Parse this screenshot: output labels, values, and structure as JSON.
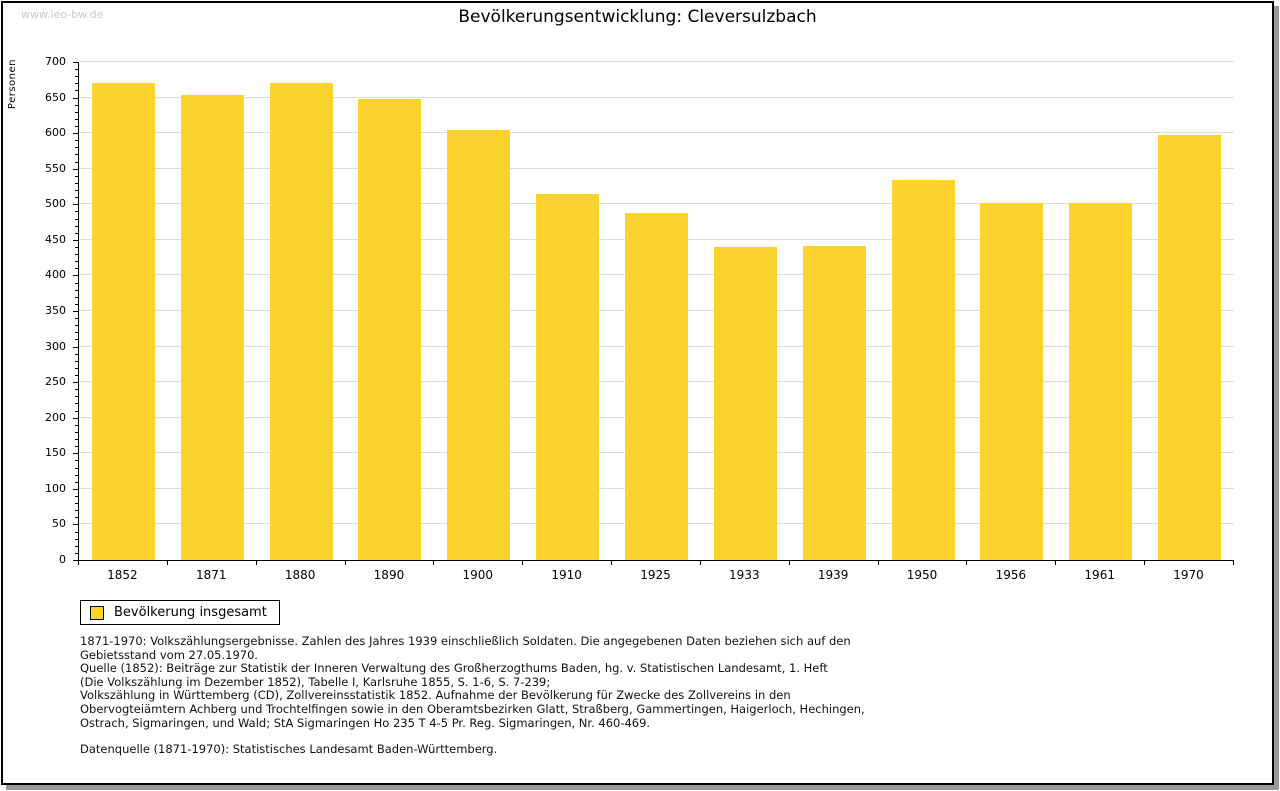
{
  "watermark": "www.leo-bw.de",
  "header": {
    "title": "Bevölkerungsentwicklung: Cleversulzbach"
  },
  "chart_data": {
    "type": "bar",
    "title": "Bevölkerungsentwicklung: Cleversulzbach",
    "xlabel": "",
    "ylabel": "Personen",
    "categories": [
      "1852",
      "1871",
      "1880",
      "1890",
      "1900",
      "1910",
      "1925",
      "1933",
      "1939",
      "1950",
      "1956",
      "1961",
      "1970"
    ],
    "values": [
      671,
      653,
      671,
      648,
      604,
      514,
      488,
      440,
      442,
      534,
      502,
      502,
      597
    ],
    "ylim": [
      0,
      700
    ],
    "ytick_step": 50,
    "y_minor_step": 10,
    "grid": true,
    "legend_position": "bottom-left",
    "series_name": "Bevölkerung insgesamt"
  },
  "legend": {
    "label": "Bevölkerung insgesamt"
  },
  "footer": {
    "lines": [
      "1871-1970: Volkszählungsergebnisse. Zahlen des Jahres 1939 einschließlich Soldaten. Die angegebenen Daten beziehen sich auf den",
      "Gebietsstand vom 27.05.1970.",
      "Quelle (1852): Beiträge zur Statistik der Inneren Verwaltung des Großherzogthums Baden, hg. v. Statistischen Landesamt, 1. Heft",
      "(Die Volkszählung im Dezember 1852), Tabelle I, Karlsruhe 1855, S. 1-6, S. 7-239;",
      "Volkszählung in Württemberg (CD), Zollvereinsstatistik 1852. Aufnahme der Bevölkerung für Zwecke des Zollvereins in den",
      "Obervogteiämtern Achberg und Trochtelfingen sowie in den Oberamtsbezirken Glatt, Straßberg, Gammertingen, Haigerloch, Hechingen,",
      "Ostrach, Sigmaringen, und Wald; StA Sigmaringen Ho 235 T 4-5 Pr. Reg. Sigmaringen, Nr. 460-469."
    ],
    "datasource": "Datenquelle (1871-1970): Statistisches Landesamt Baden-Württemberg."
  },
  "colors": {
    "bar": "#fcd22d",
    "grid": "#dcdcdc",
    "axis": "#000000",
    "watermark": "#c8c8c8",
    "frame_shadow": "#999999",
    "background": "#ffffff"
  }
}
